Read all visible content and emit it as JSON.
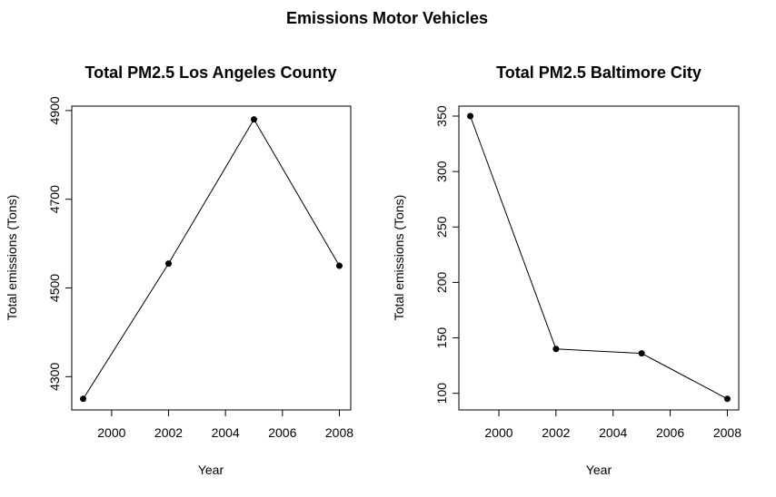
{
  "figure": {
    "title": "Emissions Motor Vehicles"
  },
  "chart_data": [
    {
      "type": "line",
      "title": "Total PM2.5 Los Angeles County",
      "xlabel": "Year",
      "ylabel": "Total emissions (Tons)",
      "x": [
        1999,
        2002,
        2005,
        2008
      ],
      "y": [
        4250,
        4555,
        4880,
        4550
      ],
      "xlim": [
        1998.6,
        2008.4
      ],
      "ylim": [
        4225,
        4910
      ],
      "xticks": [
        2000,
        2002,
        2004,
        2006,
        2008
      ],
      "yticks": [
        4300,
        4500,
        4700,
        4900
      ],
      "xtick_labels": [
        "2000",
        "2002",
        "2004",
        "2006",
        "2008"
      ],
      "ytick_labels": [
        "4300",
        "4500",
        "4700",
        "4900"
      ],
      "marker": "filled-circle",
      "color": "#000000",
      "grid": false
    },
    {
      "type": "line",
      "title": "Total PM2.5 Baltimore City",
      "xlabel": "Year",
      "ylabel": "Total emissions (Tons)",
      "x": [
        1999,
        2002,
        2005,
        2008
      ],
      "y": [
        350,
        140,
        136,
        95
      ],
      "xlim": [
        1998.6,
        2008.4
      ],
      "ylim": [
        85,
        359
      ],
      "xticks": [
        2000,
        2002,
        2004,
        2006,
        2008
      ],
      "yticks": [
        100,
        150,
        200,
        250,
        300,
        350
      ],
      "xtick_labels": [
        "2000",
        "2002",
        "2004",
        "2006",
        "2008"
      ],
      "ytick_labels": [
        "100",
        "150",
        "200",
        "250",
        "300",
        "350"
      ],
      "marker": "filled-circle",
      "color": "#000000",
      "grid": false
    }
  ]
}
